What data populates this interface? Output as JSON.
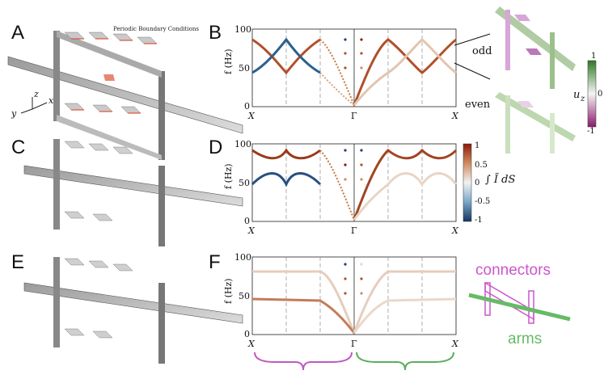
{
  "panels": {
    "A": {
      "letter": "A",
      "note": "Periodic Boundary Conditions",
      "axes": {
        "x": "x",
        "y": "y",
        "z": "z"
      }
    },
    "B": {
      "letter": "B"
    },
    "C": {
      "letter": "C"
    },
    "D": {
      "letter": "D"
    },
    "E": {
      "letter": "E"
    },
    "F": {
      "letter": "F"
    }
  },
  "mode_labels": {
    "odd": "odd",
    "even": "even"
  },
  "colorbar_uz": {
    "label": "u",
    "sub": "z",
    "ticks": [
      "1",
      "0",
      "-1"
    ]
  },
  "colorbar_int": {
    "label": "∫ Ĩ dS",
    "ticks": [
      "1",
      "0.5",
      "0",
      "-0.5",
      "-1"
    ]
  },
  "legend": {
    "connectors": "connectors",
    "arms": "arms"
  },
  "colors": {
    "connectors": "#cc55cc",
    "arms": "#66bb66",
    "red": "#8b1a0a",
    "blue": "#1f4f80"
  },
  "chart_data": [
    {
      "type": "line",
      "panel": "B",
      "xlabel": "",
      "ylabel": "f (Hz)",
      "ylim": [
        0,
        100
      ],
      "x_ticks": [
        "X",
        "Γ",
        "X"
      ],
      "y_ticks": [
        "0",
        "50",
        "100"
      ],
      "series": [
        {
          "values": [
            [
              0,
              87
            ],
            [
              0.25,
              45
            ],
            [
              0.5,
              87
            ],
            [
              0.75,
              45
            ],
            [
              1,
              87
            ],
            [
              1.25,
              45
            ],
            [
              1.5,
              87
            ],
            [
              1.75,
              45
            ],
            [
              2,
              87
            ],
            [
              2.25,
              45
            ],
            [
              2.5,
              87
            ],
            [
              2.75,
              45
            ],
            [
              3,
              5
            ]
          ]
        },
        {
          "values": [
            [
              0,
              45
            ],
            [
              0.25,
              87
            ],
            [
              0.5,
              45
            ],
            [
              0.75,
              87
            ],
            [
              1,
              45
            ],
            [
              1.25,
              87
            ],
            [
              1.5,
              45
            ],
            [
              1.75,
              87
            ],
            [
              2,
              45
            ],
            [
              2.25,
              87
            ],
            [
              2.5,
              45
            ],
            [
              2.75,
              87
            ],
            [
              3,
              5
            ]
          ]
        }
      ]
    },
    {
      "type": "line",
      "panel": "D",
      "xlabel": "",
      "ylabel": "f (Hz)",
      "ylim": [
        0,
        100
      ],
      "x_ticks": [
        "X",
        "Γ",
        "X"
      ],
      "y_ticks": [
        "0",
        "50",
        "100"
      ]
    },
    {
      "type": "line",
      "panel": "F",
      "xlabel": "",
      "ylabel": "f (Hz)",
      "ylim": [
        0,
        100
      ],
      "x_ticks": [
        "X",
        "Γ",
        "X"
      ],
      "y_ticks": [
        "0",
        "50",
        "100"
      ],
      "series": [
        {
          "values": [
            [
              0,
              82
            ],
            [
              1,
              82
            ],
            [
              2,
              82
            ],
            [
              2.5,
              75
            ],
            [
              2.9,
              40
            ],
            [
              3,
              5
            ]
          ]
        },
        {
          "values": [
            [
              0,
              46
            ],
            [
              1,
              46
            ],
            [
              2,
              45
            ],
            [
              2.5,
              38
            ],
            [
              2.9,
              18
            ],
            [
              3,
              5
            ]
          ]
        }
      ]
    }
  ]
}
